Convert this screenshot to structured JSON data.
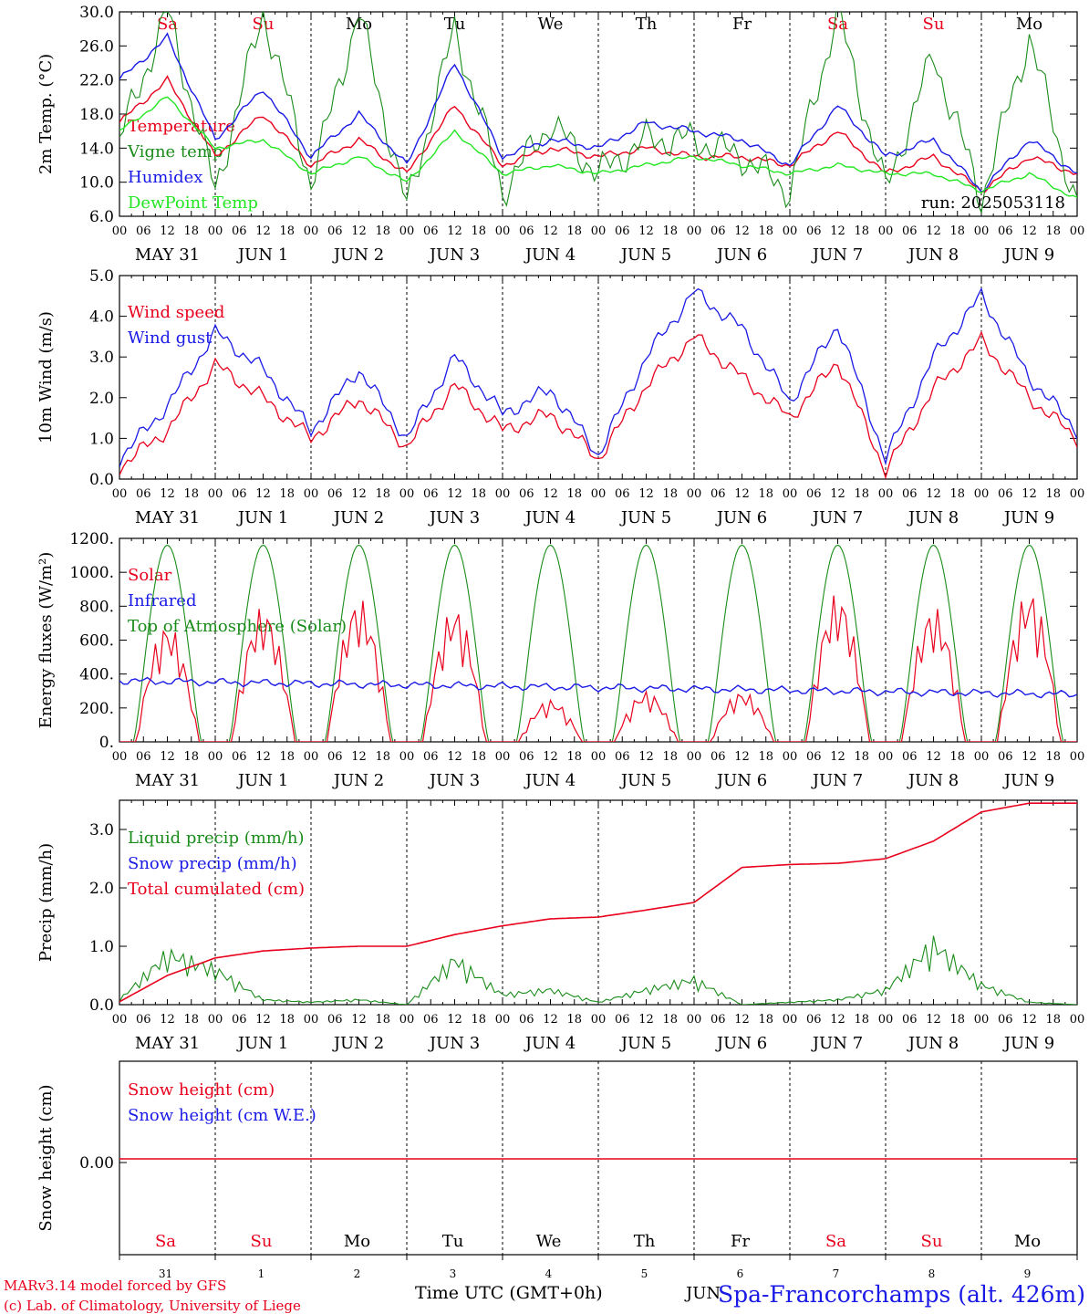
{
  "run_label": "run: 2025053118",
  "footer": {
    "credit_line1": "MARv3.14 model forced by GFS",
    "credit_line2": "(c) Lab. of Climatology, University of Liege",
    "time_label": "Time UTC (GMT+0h)",
    "month_label": "JUN",
    "station": "Spa-Francorchamps (alt. 426m)"
  },
  "colors": {
    "red": "#e8001c",
    "green": "#1a8c1a",
    "blue": "#1a1ae6",
    "lightgreen": "#22e622",
    "weekend": "#e8001c",
    "weekday": "#000000"
  },
  "days": [
    {
      "dow": "Sa",
      "date": "MAY 31",
      "num": "31",
      "weekend": true
    },
    {
      "dow": "Su",
      "date": "JUN  1",
      "num": "1",
      "weekend": true
    },
    {
      "dow": "Mo",
      "date": "JUN  2",
      "num": "2",
      "weekend": false
    },
    {
      "dow": "Tu",
      "date": "JUN  3",
      "num": "3",
      "weekend": false
    },
    {
      "dow": "We",
      "date": "JUN  4",
      "num": "4",
      "weekend": false
    },
    {
      "dow": "Th",
      "date": "JUN  5",
      "num": "5",
      "weekend": false
    },
    {
      "dow": "Fr",
      "date": "JUN  6",
      "num": "6",
      "weekend": false
    },
    {
      "dow": "Sa",
      "date": "JUN  7",
      "num": "7",
      "weekend": true
    },
    {
      "dow": "Su",
      "date": "JUN  8",
      "num": "8",
      "weekend": true
    },
    {
      "dow": "Mo",
      "date": "JUN  9",
      "num": "9",
      "weekend": false
    }
  ],
  "hour_ticks": [
    "00",
    "06",
    "12",
    "18"
  ],
  "chart_data": [
    {
      "type": "line",
      "ylabel": "2m Temp. (°C)",
      "ylim": [
        6.0,
        30.0
      ],
      "yticks": [
        "6.0",
        "10.0",
        "14.0",
        "18.0",
        "22.0",
        "26.0",
        "30.0"
      ],
      "x_hours": [
        0,
        12,
        24,
        36,
        48,
        60,
        72,
        84,
        96,
        108,
        120,
        132,
        144,
        156,
        168,
        180,
        192,
        204,
        216,
        228,
        240
      ],
      "series": [
        {
          "name": "Temperature",
          "color": "red",
          "values": [
            17,
            22,
            13,
            18,
            12,
            15,
            11,
            19,
            12,
            14,
            13,
            14,
            13,
            13,
            12,
            16,
            11,
            13,
            9,
            13,
            11
          ]
        },
        {
          "name": "Vigne temp",
          "color": "green",
          "values": [
            15,
            30,
            9,
            30,
            10,
            30,
            7,
            28,
            9,
            17,
            11,
            15,
            15,
            13,
            9,
            30,
            9,
            25,
            8,
            27,
            7
          ]
        },
        {
          "name": "Humidex",
          "color": "blue",
          "values": [
            22,
            27,
            15,
            21,
            13,
            18,
            12,
            24,
            13,
            15,
            14,
            17,
            16,
            15,
            12,
            19,
            13,
            15,
            9,
            15,
            11
          ]
        },
        {
          "name": "DewPoint Temp",
          "color": "lightgreen",
          "values": [
            16,
            20,
            14,
            15,
            11,
            13,
            10,
            16,
            11,
            12,
            11,
            12,
            13,
            12,
            11,
            12,
            11,
            11,
            9,
            11,
            8
          ]
        }
      ]
    },
    {
      "type": "line",
      "ylabel": "10m Wind (m/s)",
      "ylim": [
        0.0,
        5.0
      ],
      "yticks": [
        "0.0",
        "1.0",
        "2.0",
        "3.0",
        "4.0",
        "5.0"
      ],
      "x_hours": [
        0,
        12,
        24,
        36,
        48,
        60,
        72,
        84,
        96,
        108,
        120,
        132,
        144,
        156,
        168,
        180,
        192,
        204,
        216,
        228,
        240
      ],
      "series": [
        {
          "name": "Wind speed",
          "color": "red",
          "values": [
            0.3,
            1.2,
            2.8,
            2.0,
            1.0,
            2.0,
            0.8,
            2.3,
            1.2,
            1.6,
            0.5,
            2.3,
            3.5,
            2.5,
            1.5,
            2.9,
            0.2,
            2.2,
            3.4,
            2.0,
            1.0
          ]
        },
        {
          "name": "Wind gust",
          "color": "blue",
          "values": [
            0.5,
            1.8,
            3.6,
            2.7,
            1.2,
            2.7,
            1.0,
            3.0,
            1.6,
            2.2,
            0.6,
            3.0,
            4.6,
            3.7,
            1.9,
            3.8,
            0.5,
            3.0,
            4.5,
            2.5,
            1.2
          ]
        }
      ]
    },
    {
      "type": "line",
      "ylabel": "Energy fluxes (W/m²)",
      "ylim": [
        0,
        1200
      ],
      "yticks": [
        "0.",
        "200.",
        "400.",
        "600.",
        "800.",
        "1000.",
        "1200."
      ],
      "series": [
        {
          "name": "Solar",
          "color": "red",
          "daily_peak": [
            700,
            800,
            850,
            800,
            250,
            300,
            300,
            880,
            800,
            900
          ]
        },
        {
          "name": "Infrared",
          "color": "blue",
          "values_start_end": [
            360,
            280
          ]
        },
        {
          "name": "Top of Atmosphere (Solar)",
          "color": "green",
          "daily_peak": [
            1160,
            1160,
            1160,
            1160,
            1160,
            1160,
            1160,
            1160,
            1160,
            1160
          ]
        }
      ]
    },
    {
      "type": "line",
      "ylabel": "Precip (mm/h)",
      "ylim": [
        0.0,
        3.5
      ],
      "yticks": [
        "0.0",
        "1.0",
        "2.0",
        "3.0"
      ],
      "x_hours": [
        0,
        12,
        24,
        36,
        48,
        60,
        72,
        84,
        96,
        108,
        120,
        132,
        144,
        156,
        168,
        180,
        192,
        204,
        216,
        228,
        240
      ],
      "series": [
        {
          "name": "Liquid precip (mm/h)",
          "color": "green",
          "values": [
            0.1,
            1.0,
            0.7,
            0.1,
            0.05,
            0.1,
            0.0,
            0.9,
            0.2,
            0.3,
            0.05,
            0.3,
            0.5,
            0.0,
            0.05,
            0.1,
            0.3,
            1.2,
            0.4,
            0.05,
            0.0
          ]
        },
        {
          "name": "Snow precip (mm/h)",
          "color": "blue",
          "values": [
            0,
            0,
            0,
            0,
            0,
            0,
            0,
            0,
            0,
            0,
            0,
            0,
            0,
            0,
            0,
            0,
            0,
            0,
            0,
            0,
            0
          ]
        },
        {
          "name": "Total cumulated (cm)",
          "color": "red",
          "values": [
            0.05,
            0.5,
            0.8,
            0.92,
            0.97,
            1.0,
            1.0,
            1.2,
            1.35,
            1.47,
            1.5,
            1.62,
            1.75,
            2.35,
            2.4,
            2.42,
            2.5,
            2.8,
            3.3,
            3.45,
            3.45
          ]
        }
      ]
    },
    {
      "type": "line",
      "ylabel": "Snow height (cm)",
      "yticks": [
        "0.00"
      ],
      "series": [
        {
          "name": "Snow height (cm)",
          "color": "red",
          "values": [
            0,
            0
          ]
        },
        {
          "name": "Snow height (cm W.E.)",
          "color": "blue",
          "values": []
        }
      ]
    }
  ]
}
